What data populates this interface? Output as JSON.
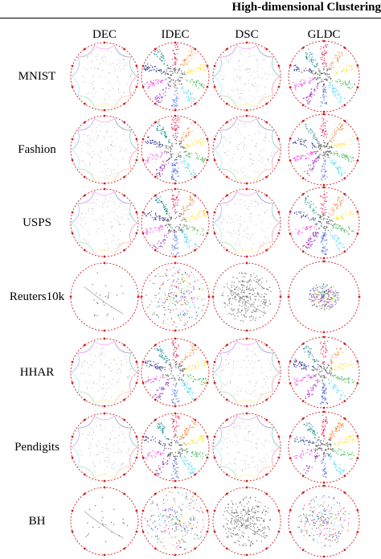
{
  "header": {
    "title": "High-dimensional Clustering"
  },
  "methods": [
    "DEC",
    "IDEC",
    "DSC",
    "GLDC"
  ],
  "datasets": [
    "MNIST",
    "Fashion",
    "USPS",
    "Reuters10k",
    "HHAR",
    "Pendigits",
    "BH"
  ],
  "colors": {
    "circle": "#d22020",
    "marker": "#d22020",
    "points": "#555555",
    "palette": [
      "#e6194b",
      "#f58231",
      "#ffe119",
      "#3cb44b",
      "#42d4f4",
      "#4363d8",
      "#911eb4",
      "#f032e6",
      "#1a237e",
      "#008080"
    ]
  }
}
